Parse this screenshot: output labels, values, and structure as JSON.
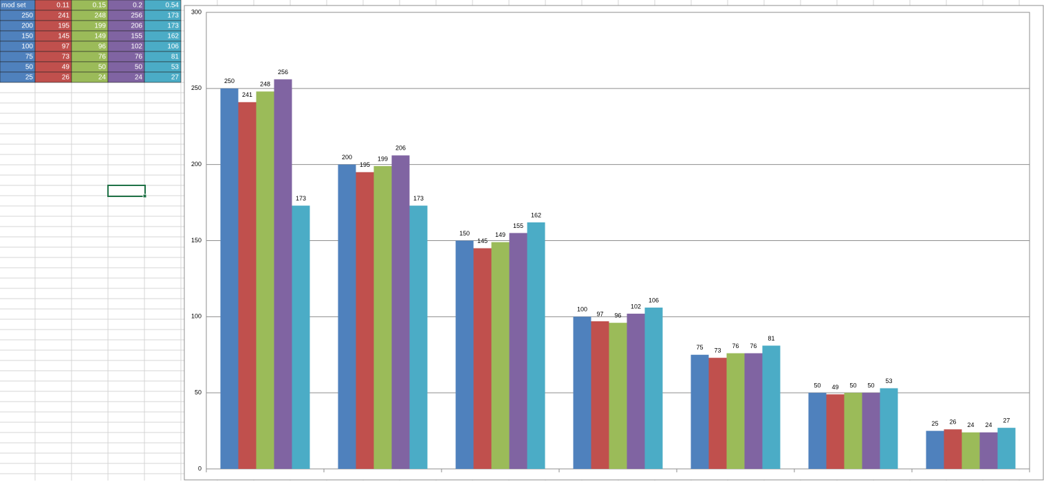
{
  "table": {
    "header": [
      "mod set",
      "0.11",
      "0.15",
      "0.2",
      "0.54"
    ],
    "rows": [
      [
        250,
        241,
        248,
        256,
        173
      ],
      [
        200,
        195,
        199,
        206,
        173
      ],
      [
        150,
        145,
        149,
        155,
        162
      ],
      [
        100,
        97,
        96,
        102,
        106
      ],
      [
        75,
        73,
        76,
        76,
        81
      ],
      [
        50,
        49,
        50,
        50,
        53
      ],
      [
        25,
        26,
        24,
        24,
        27
      ]
    ]
  },
  "chart_data": {
    "type": "bar",
    "categories": [
      null,
      null,
      null,
      null,
      null,
      null,
      null
    ],
    "series": [
      {
        "color": "#4f81bd",
        "values": [
          250,
          200,
          150,
          100,
          75,
          50,
          25
        ]
      },
      {
        "color": "#c0504d",
        "values": [
          241,
          195,
          145,
          97,
          73,
          49,
          26
        ]
      },
      {
        "color": "#9bbb59",
        "values": [
          248,
          199,
          149,
          96,
          76,
          50,
          24
        ]
      },
      {
        "color": "#8064a2",
        "values": [
          256,
          206,
          155,
          102,
          76,
          50,
          24
        ]
      },
      {
        "color": "#4bacc6",
        "values": [
          173,
          173,
          162,
          106,
          81,
          53,
          27
        ]
      }
    ],
    "ylim": [
      0,
      300
    ],
    "yticks": [
      0,
      50,
      100,
      150,
      200,
      250,
      300
    ],
    "grid": true
  }
}
